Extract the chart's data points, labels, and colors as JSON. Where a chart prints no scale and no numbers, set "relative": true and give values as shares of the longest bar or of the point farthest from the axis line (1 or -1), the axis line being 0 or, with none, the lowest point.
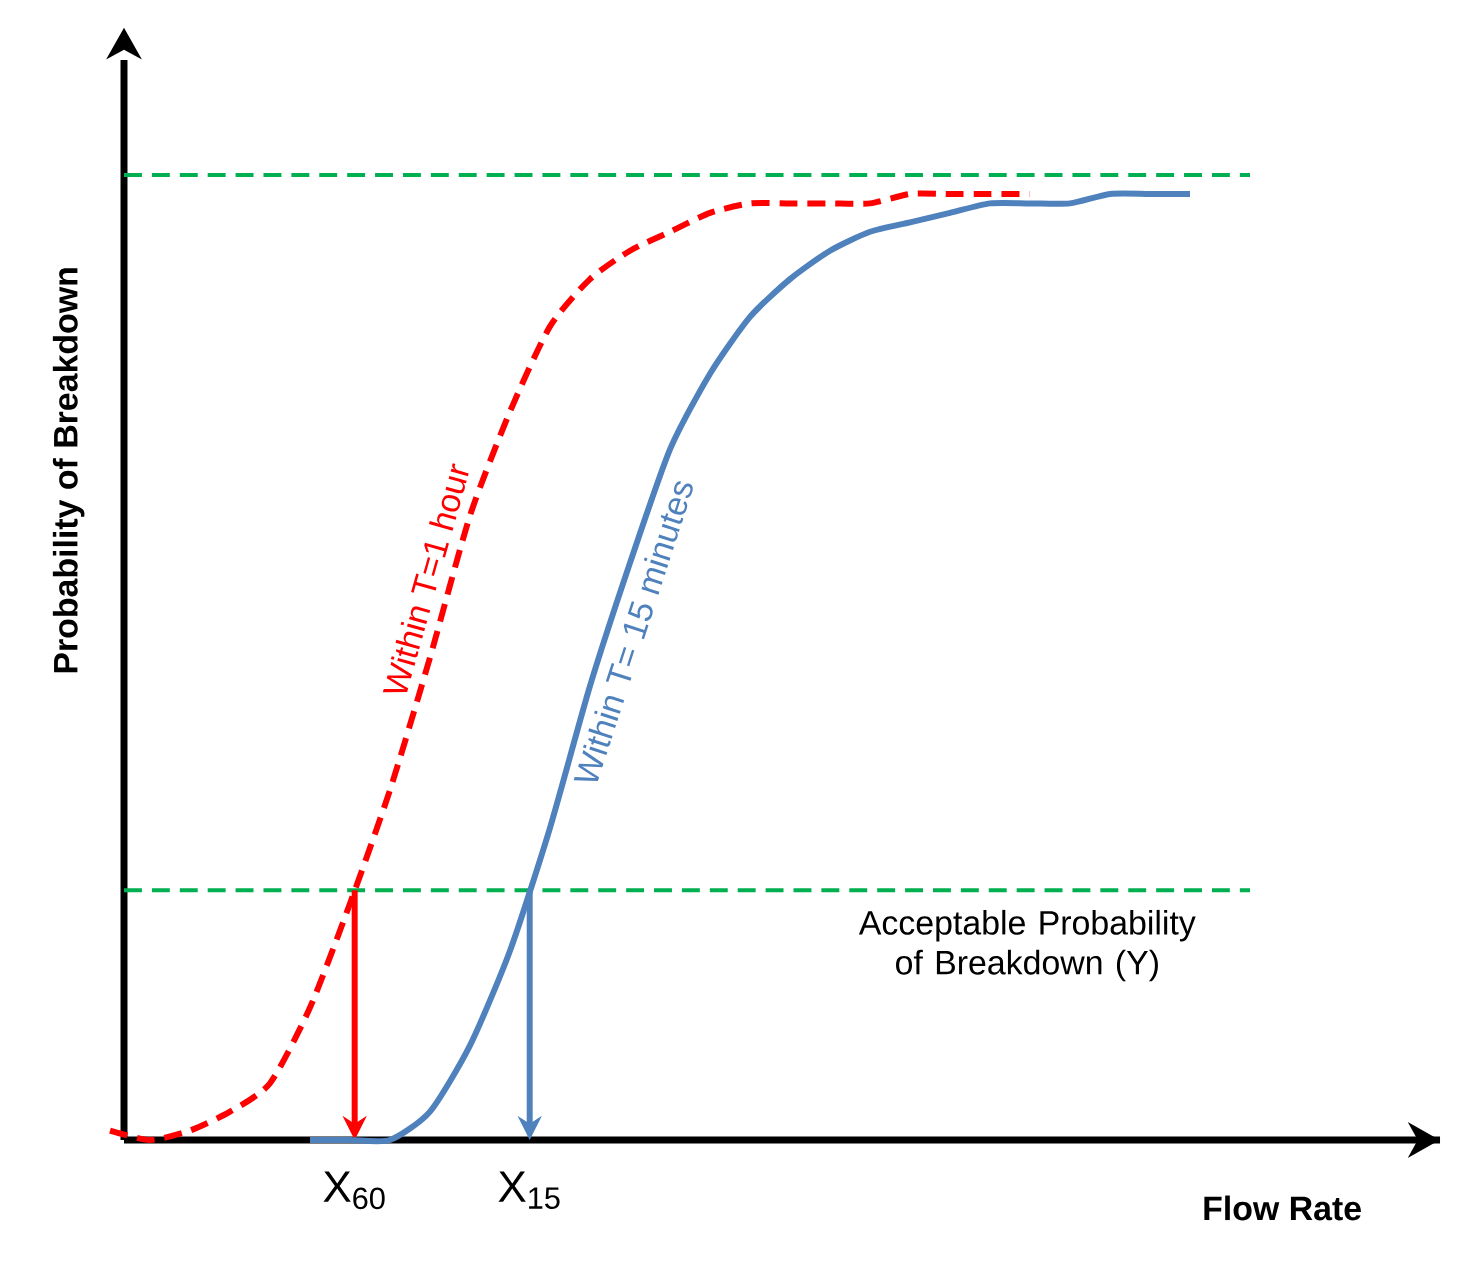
{
  "chart_data": {
    "type": "line",
    "relative": true,
    "xlabel": "Flow Rate",
    "ylabel": "Probability of Breakdown",
    "marker": "none",
    "categories": [
      null,
      null,
      null,
      null,
      null,
      null,
      null,
      null,
      null,
      null,
      null,
      null,
      null,
      null,
      null,
      null,
      null,
      null,
      null,
      null,
      null,
      null,
      null,
      null,
      null,
      null,
      null,
      null
    ],
    "series": [
      {
        "name": "Within T=1 hour",
        "color": "#ff0000",
        "line_style": "dashed",
        "values": [
          0.01,
          0,
          0.01,
          0.03,
          0.06,
          0.14,
          0.25,
          0.37,
          0.51,
          0.66,
          0.77,
          0.86,
          0.91,
          0.94,
          0.96,
          0.98,
          0.99,
          0.99,
          0.99,
          0.99,
          1,
          1,
          1,
          1,
          null,
          null,
          null,
          null
        ]
      },
      {
        "name": "Within T= 15 minutes",
        "color": "#4f81bd",
        "line_style": "solid",
        "values": [
          null,
          null,
          null,
          null,
          null,
          0,
          0,
          0,
          0.03,
          0.1,
          0.2,
          0.33,
          0.48,
          0.61,
          0.73,
          0.81,
          0.87,
          0.91,
          0.94,
          0.96,
          0.97,
          0.98,
          0.99,
          0.99,
          0.99,
          1,
          1,
          1
        ]
      }
    ],
    "ref_lines": [
      {
        "axis": "y",
        "value": 1.02,
        "color": "#00b050",
        "line_style": "dashed"
      },
      {
        "axis": "y",
        "value": 0.264,
        "color": "#00b050",
        "line_style": "dashed",
        "label": "Acceptable Probability of Breakdown (Y)"
      }
    ],
    "annotations": [
      "X$_{60}$",
      "X$_{15}$"
    ]
  }
}
